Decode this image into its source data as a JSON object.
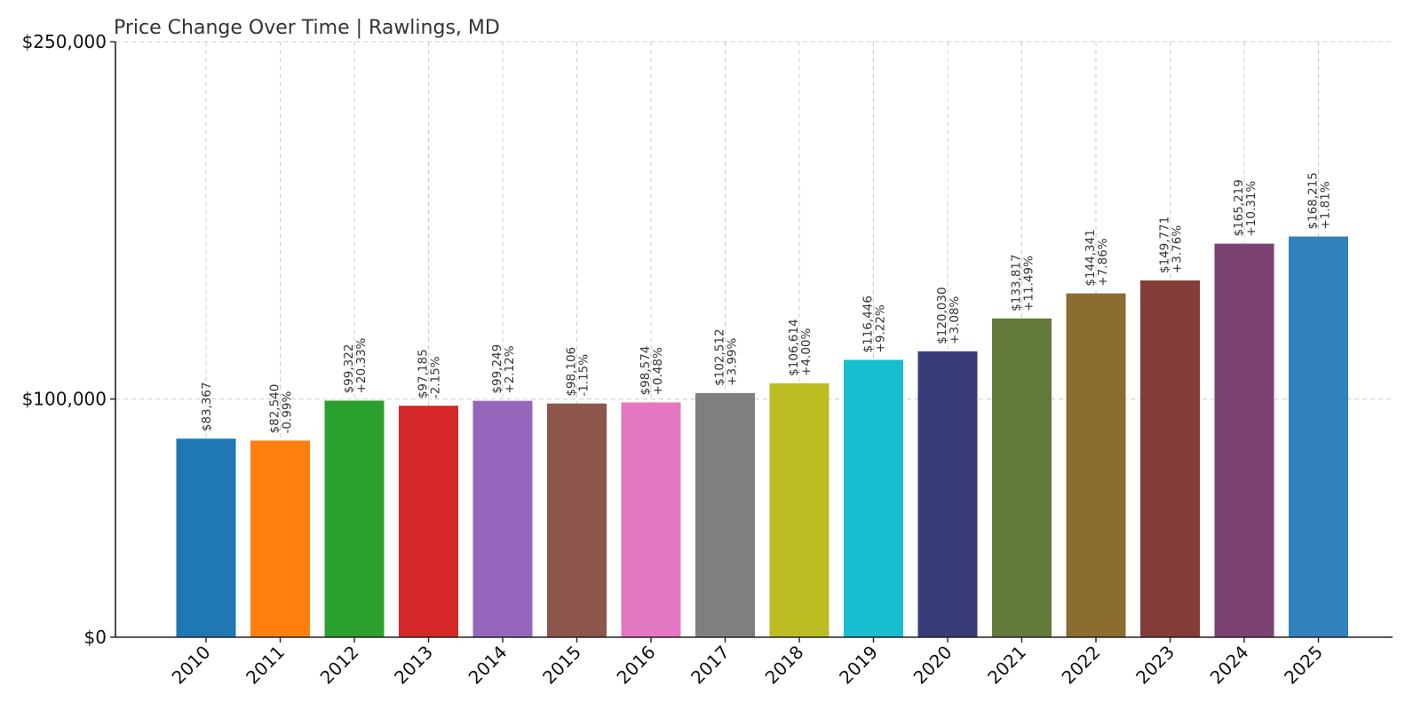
{
  "chart_data": {
    "type": "bar",
    "title": "Price Change Over Time | Rawlings, MD",
    "xlabel": "",
    "ylabel": "",
    "ylim": [
      0,
      250000
    ],
    "yticks": [
      {
        "value": 0,
        "label": "$0"
      },
      {
        "value": 100000,
        "label": "$100,000"
      },
      {
        "value": 250000,
        "label": "$250,000"
      }
    ],
    "grid": true,
    "categories": [
      "2010",
      "2011",
      "2012",
      "2013",
      "2014",
      "2015",
      "2016",
      "2017",
      "2018",
      "2019",
      "2020",
      "2021",
      "2022",
      "2023",
      "2024",
      "2025"
    ],
    "values": [
      83367,
      82540,
      99322,
      97185,
      99249,
      98106,
      98574,
      102512,
      106614,
      116446,
      120030,
      133817,
      144341,
      149771,
      165219,
      168215
    ],
    "value_labels": [
      "$83,367",
      "$82,540",
      "$99,322",
      "$97,185",
      "$99,249",
      "$98,106",
      "$98,574",
      "$102,512",
      "$106,614",
      "$116,446",
      "$120,030",
      "$133,817",
      "$144,341",
      "$149,771",
      "$165,219",
      "$168,215"
    ],
    "change_labels": [
      "",
      "-0.99%",
      "+20.33%",
      "-2.15%",
      "+2.12%",
      "-1.15%",
      "+0.48%",
      "+3.99%",
      "+4.00%",
      "+9.22%",
      "+3.08%",
      "+11.49%",
      "+7.86%",
      "+3.76%",
      "+10.31%",
      "+1.81%"
    ],
    "colors": [
      "#1f77b4",
      "#ff7f0e",
      "#2ca02c",
      "#d62728",
      "#9467bd",
      "#8c564b",
      "#e377c2",
      "#7f7f7f",
      "#bcbd22",
      "#17becf",
      "#393b79",
      "#637939",
      "#8c6d31",
      "#843c39",
      "#7b4173",
      "#3182bd"
    ]
  }
}
